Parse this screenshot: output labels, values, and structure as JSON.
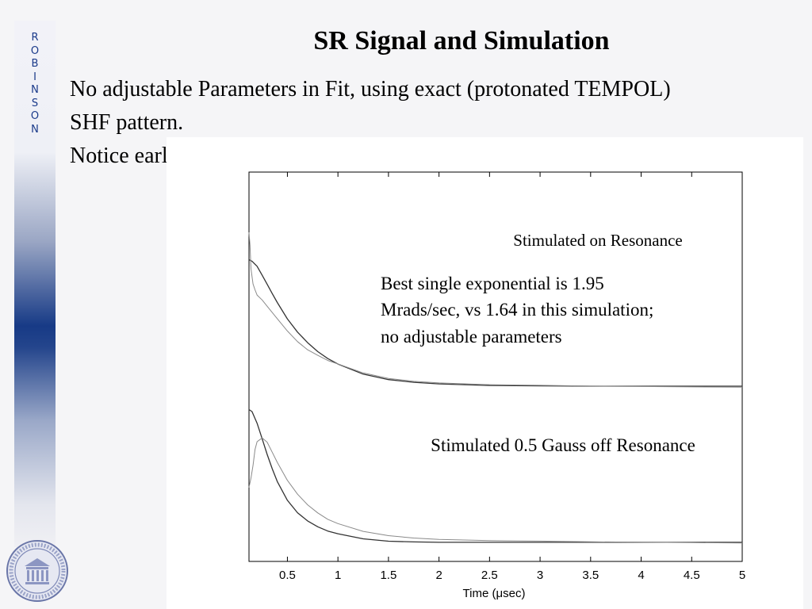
{
  "slide": {
    "title": "SR Signal and Simulation",
    "bullets": [
      "No adjustable Parameters in Fit, using exact (protonated TEMPOL) SHF pattern.",
      "Notice early time is not a “pure” recovery"
    ]
  },
  "sidebar": {
    "letters": [
      "R",
      "O",
      "B",
      "I",
      "N",
      "S",
      "O",
      "N"
    ]
  },
  "logo": {
    "icon": "university-seal-icon"
  },
  "chart_data": {
    "type": "line",
    "xlabel": "Time (μsec)",
    "xlim": [
      0.12,
      5.0
    ],
    "ylim": [
      0,
      1
    ],
    "xticks": [
      0.5,
      1,
      1.5,
      2,
      2.5,
      3,
      3.5,
      4,
      4.5,
      5
    ],
    "xtick_labels": [
      "0.5",
      "1",
      "1.5",
      "2",
      "2.5",
      "3",
      "3.5",
      "4",
      "4.5",
      "5"
    ],
    "yticks_shown": false,
    "grid": false,
    "colors": {
      "simulation": "#333333",
      "signal": "#8a8a8a"
    },
    "series": [
      {
        "x": [
          0.12,
          0.15,
          0.2,
          0.25,
          0.3,
          0.35,
          0.4,
          0.5,
          0.6,
          0.7,
          0.8,
          0.9,
          1.0,
          1.25,
          1.5,
          1.75,
          2.0,
          2.5,
          3.0,
          3.5,
          4.0,
          4.5,
          5.0
        ],
        "y": [
          0.775,
          0.771,
          0.758,
          0.735,
          0.712,
          0.688,
          0.665,
          0.623,
          0.589,
          0.562,
          0.539,
          0.521,
          0.507,
          0.481,
          0.467,
          0.46,
          0.456,
          0.452,
          0.451,
          0.45,
          0.45,
          0.45,
          0.45
        ]
      },
      {
        "x": [
          0.12,
          0.13,
          0.14,
          0.16,
          0.18,
          0.2,
          0.25,
          0.3,
          0.35,
          0.4,
          0.5,
          0.6,
          0.7,
          0.8,
          0.9,
          1.0,
          1.25,
          1.5,
          1.75,
          2.0,
          2.5,
          3.0,
          3.5,
          4.0,
          4.5,
          5.0
        ],
        "y": [
          0.845,
          0.81,
          0.75,
          0.71,
          0.695,
          0.682,
          0.67,
          0.655,
          0.64,
          0.625,
          0.594,
          0.567,
          0.546,
          0.531,
          0.517,
          0.507,
          0.483,
          0.468,
          0.46,
          0.456,
          0.452,
          0.451,
          0.45,
          0.45,
          0.45,
          0.45
        ]
      },
      {
        "x": [
          0.12,
          0.15,
          0.2,
          0.25,
          0.3,
          0.35,
          0.4,
          0.5,
          0.6,
          0.7,
          0.8,
          0.9,
          1.0,
          1.25,
          1.5,
          1.75,
          2.0,
          2.5,
          3.0,
          3.5,
          4.0,
          4.5,
          5.0
        ],
        "y": [
          0.39,
          0.385,
          0.355,
          0.315,
          0.275,
          0.238,
          0.205,
          0.157,
          0.125,
          0.104,
          0.089,
          0.078,
          0.071,
          0.058,
          0.052,
          0.05,
          0.049,
          0.049,
          0.049,
          0.049,
          0.049,
          0.049,
          0.049
        ]
      },
      {
        "x": [
          0.12,
          0.14,
          0.16,
          0.18,
          0.2,
          0.25,
          0.3,
          0.35,
          0.4,
          0.5,
          0.6,
          0.7,
          0.8,
          0.9,
          1.0,
          1.25,
          1.5,
          1.75,
          2.0,
          2.5,
          3.0,
          3.5,
          4.0,
          4.5,
          5.0
        ],
        "y": [
          0.19,
          0.213,
          0.245,
          0.285,
          0.305,
          0.315,
          0.305,
          0.28,
          0.255,
          0.21,
          0.175,
          0.148,
          0.127,
          0.11,
          0.098,
          0.077,
          0.065,
          0.058,
          0.054,
          0.051,
          0.05,
          0.049,
          0.049,
          0.049,
          0.049
        ]
      }
    ],
    "annotations": [
      "Stimulated on Resonance",
      "Best single exponential is 1.95",
      "Mrads/sec, vs 1.64 in this simulation;",
      "no adjustable parameters",
      "Stimulated 0.5 Gauss off Resonance"
    ]
  }
}
